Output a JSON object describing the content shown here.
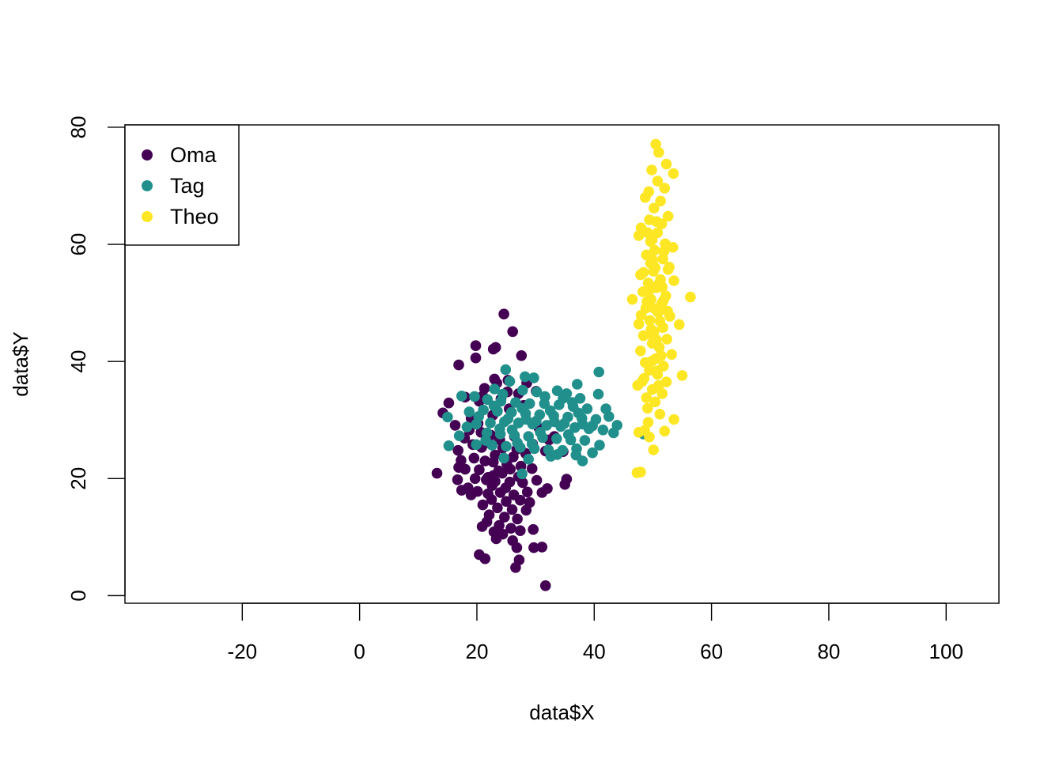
{
  "chart_data": {
    "type": "scatter",
    "title": "",
    "xlabel": "data$X",
    "ylabel": "data$Y",
    "xlim": [
      -40,
      109
    ],
    "ylim": [
      -1.3,
      80.4
    ],
    "x_ticks": [
      -20,
      0,
      20,
      40,
      60,
      80,
      100
    ],
    "y_ticks": [
      0,
      20,
      40,
      60,
      80
    ],
    "grid": false,
    "legend_position": "top-left",
    "series": [
      {
        "name": "Oma",
        "color": "#440154",
        "points": [
          [
            24.6,
            48.1
          ],
          [
            26.1,
            45.1
          ],
          [
            19.8,
            42.7
          ],
          [
            23.2,
            42.4
          ],
          [
            22.8,
            42.1
          ],
          [
            27.6,
            41.0
          ],
          [
            19.8,
            40.6
          ],
          [
            16.9,
            39.4
          ],
          [
            23.4,
            36.3
          ],
          [
            25.3,
            36.8
          ],
          [
            21.3,
            35.4
          ],
          [
            25.2,
            34.8
          ],
          [
            18.0,
            33.9
          ],
          [
            20.4,
            33.2
          ],
          [
            15.2,
            32.9
          ],
          [
            14.2,
            31.2
          ],
          [
            19.0,
            30.3
          ],
          [
            16.3,
            29.1
          ],
          [
            18.7,
            28.3
          ],
          [
            20.7,
            27.9
          ],
          [
            22.4,
            27.4
          ],
          [
            17.9,
            26.9
          ],
          [
            21.7,
            26.1
          ],
          [
            19.3,
            25.8
          ],
          [
            24.4,
            25.2
          ],
          [
            26.8,
            25.0
          ],
          [
            29.5,
            25.9
          ],
          [
            31.7,
            24.7
          ],
          [
            32.3,
            26.6
          ],
          [
            34.7,
            24.6
          ],
          [
            16.8,
            24.8
          ],
          [
            19.5,
            23.5
          ],
          [
            17.3,
            23.1
          ],
          [
            21.4,
            23.0
          ],
          [
            22.8,
            22.8
          ],
          [
            25.1,
            22.5
          ],
          [
            27.5,
            22.1
          ],
          [
            29.4,
            21.7
          ],
          [
            23.7,
            21.3
          ],
          [
            20.4,
            21.5
          ],
          [
            18.0,
            21.6
          ],
          [
            16.9,
            21.9
          ],
          [
            13.2,
            20.9
          ],
          [
            19.7,
            20.0
          ],
          [
            21.6,
            19.8
          ],
          [
            23.1,
            19.5
          ],
          [
            25.6,
            19.4
          ],
          [
            27.8,
            19.3
          ],
          [
            30.2,
            19.7
          ],
          [
            16.7,
            19.8
          ],
          [
            18.5,
            18.4
          ],
          [
            20.1,
            17.8
          ],
          [
            21.9,
            17.4
          ],
          [
            24.0,
            17.6
          ],
          [
            26.3,
            17.2
          ],
          [
            28.6,
            17.7
          ],
          [
            31.1,
            17.6
          ],
          [
            32.0,
            18.3
          ],
          [
            35.0,
            19.0
          ],
          [
            35.3,
            19.9
          ],
          [
            17.4,
            18.0
          ],
          [
            19.0,
            17.2
          ],
          [
            22.5,
            16.4
          ],
          [
            25.0,
            16.1
          ],
          [
            27.4,
            16.3
          ],
          [
            29.0,
            15.9
          ],
          [
            21.0,
            15.5
          ],
          [
            23.5,
            15.0
          ],
          [
            26.0,
            14.7
          ],
          [
            28.4,
            14.6
          ],
          [
            22.1,
            13.8
          ],
          [
            24.7,
            13.4
          ],
          [
            26.9,
            13.1
          ],
          [
            21.7,
            12.6
          ],
          [
            23.8,
            12.0
          ],
          [
            25.8,
            11.5
          ],
          [
            27.4,
            11.1
          ],
          [
            29.6,
            11.3
          ],
          [
            22.9,
            10.9
          ],
          [
            20.9,
            11.8
          ],
          [
            24.4,
            10.5
          ],
          [
            23.3,
            9.7
          ],
          [
            26.1,
            9.4
          ],
          [
            29.7,
            8.2
          ],
          [
            31.1,
            8.3
          ],
          [
            26.8,
            8.2
          ],
          [
            20.4,
            7.0
          ],
          [
            21.4,
            6.3
          ],
          [
            27.2,
            6.1
          ],
          [
            26.6,
            4.8
          ],
          [
            31.7,
            1.7
          ],
          [
            22.8,
            20.5
          ],
          [
            24.3,
            20.9
          ],
          [
            26.2,
            23.7
          ],
          [
            28.3,
            24.3
          ],
          [
            23.1,
            24.0
          ],
          [
            21.9,
            20.2
          ],
          [
            25.7,
            21.6
          ],
          [
            24.9,
            18.4
          ],
          [
            22.6,
            18.8
          ],
          [
            27.1,
            20.3
          ],
          [
            20.8,
            25.3
          ],
          [
            23.9,
            26.6
          ],
          [
            26.4,
            27.2
          ],
          [
            30.6,
            28.6
          ],
          [
            33.2,
            27.2
          ],
          [
            20.2,
            29.4
          ],
          [
            22.7,
            30.8
          ],
          [
            25.5,
            31.9
          ],
          [
            28.0,
            32.5
          ],
          [
            24.1,
            33.6
          ],
          [
            27.1,
            34.5
          ],
          [
            30.1,
            34.9
          ],
          [
            21.0,
            34.1
          ],
          [
            23.0,
            37.0
          ],
          [
            28.5,
            36.3
          ]
        ]
      },
      {
        "name": "Tag",
        "color": "#21908C",
        "points": [
          [
            24.9,
            38.6
          ],
          [
            28.2,
            37.4
          ],
          [
            29.7,
            37.2
          ],
          [
            37.1,
            36.1
          ],
          [
            40.8,
            38.2
          ],
          [
            25.6,
            36.6
          ],
          [
            23.0,
            35.3
          ],
          [
            27.8,
            35.1
          ],
          [
            30.2,
            34.8
          ],
          [
            33.7,
            35.0
          ],
          [
            35.3,
            34.5
          ],
          [
            37.6,
            33.7
          ],
          [
            40.7,
            34.4
          ],
          [
            17.4,
            34.1
          ],
          [
            19.6,
            34.0
          ],
          [
            21.8,
            33.5
          ],
          [
            24.1,
            33.2
          ],
          [
            26.6,
            33.0
          ],
          [
            29.0,
            32.8
          ],
          [
            31.5,
            32.8
          ],
          [
            34.0,
            32.6
          ],
          [
            36.4,
            32.3
          ],
          [
            38.8,
            31.9
          ],
          [
            15.0,
            30.5
          ],
          [
            18.7,
            31.4
          ],
          [
            21.1,
            31.7
          ],
          [
            23.5,
            31.5
          ],
          [
            25.9,
            31.3
          ],
          [
            28.3,
            31.1
          ],
          [
            30.7,
            30.9
          ],
          [
            33.1,
            30.7
          ],
          [
            35.5,
            30.5
          ],
          [
            37.9,
            30.3
          ],
          [
            40.3,
            30.1
          ],
          [
            42.5,
            30.6
          ],
          [
            43.9,
            29.1
          ],
          [
            19.9,
            29.3
          ],
          [
            22.3,
            29.5
          ],
          [
            24.7,
            29.7
          ],
          [
            27.1,
            29.5
          ],
          [
            29.5,
            29.3
          ],
          [
            31.9,
            29.1
          ],
          [
            34.3,
            28.9
          ],
          [
            36.7,
            28.7
          ],
          [
            39.1,
            28.5
          ],
          [
            41.5,
            28.3
          ],
          [
            17.0,
            27.3
          ],
          [
            21.7,
            27.8
          ],
          [
            24.0,
            27.6
          ],
          [
            26.4,
            27.4
          ],
          [
            28.8,
            27.2
          ],
          [
            31.2,
            27.0
          ],
          [
            33.6,
            26.8
          ],
          [
            36.0,
            26.6
          ],
          [
            38.4,
            26.5
          ],
          [
            43.3,
            27.8
          ],
          [
            19.9,
            25.8
          ],
          [
            22.6,
            25.7
          ],
          [
            25.0,
            25.5
          ],
          [
            27.4,
            25.3
          ],
          [
            29.8,
            25.1
          ],
          [
            32.2,
            24.9
          ],
          [
            34.6,
            24.8
          ],
          [
            37.0,
            25.1
          ],
          [
            40.9,
            25.7
          ],
          [
            15.2,
            25.6
          ],
          [
            24.6,
            23.5
          ],
          [
            28.8,
            23.3
          ],
          [
            33.7,
            24.1
          ],
          [
            36.9,
            24.0
          ],
          [
            38.0,
            23.0
          ],
          [
            39.7,
            24.4
          ],
          [
            27.7,
            20.8
          ],
          [
            48.4,
            27.6
          ],
          [
            20.3,
            30.6
          ],
          [
            22.9,
            32.4
          ],
          [
            25.3,
            30.2
          ],
          [
            27.7,
            32.0
          ],
          [
            30.1,
            29.8
          ],
          [
            32.5,
            31.6
          ],
          [
            34.9,
            29.4
          ],
          [
            37.3,
            31.2
          ],
          [
            39.7,
            29.0
          ],
          [
            26.0,
            28.3
          ],
          [
            28.4,
            30.1
          ],
          [
            30.8,
            27.9
          ],
          [
            33.2,
            29.7
          ],
          [
            35.6,
            27.5
          ],
          [
            38.0,
            29.3
          ],
          [
            21.5,
            26.5
          ],
          [
            23.9,
            28.5
          ],
          [
            31.6,
            34.0
          ],
          [
            34.7,
            33.7
          ],
          [
            29.4,
            25.9
          ],
          [
            32.6,
            23.8
          ],
          [
            18.3,
            28.8
          ],
          [
            42.0,
            31.9
          ],
          [
            36.3,
            33.0
          ],
          [
            24.4,
            34.4
          ],
          [
            26.9,
            26.1
          ]
        ]
      },
      {
        "name": "Theo",
        "color": "#FDE725",
        "points": [
          [
            50.5,
            77.1
          ],
          [
            51.0,
            75.7
          ],
          [
            52.3,
            73.7
          ],
          [
            49.8,
            72.7
          ],
          [
            53.5,
            72.1
          ],
          [
            50.8,
            70.8
          ],
          [
            52.0,
            69.6
          ],
          [
            49.3,
            69.0
          ],
          [
            48.7,
            68.0
          ],
          [
            51.3,
            67.4
          ],
          [
            50.2,
            66.2
          ],
          [
            52.6,
            64.8
          ],
          [
            49.4,
            64.2
          ],
          [
            51.5,
            63.5
          ],
          [
            48.0,
            62.8
          ],
          [
            50.8,
            62.0
          ],
          [
            47.6,
            61.5
          ],
          [
            49.9,
            60.8
          ],
          [
            52.1,
            60.1
          ],
          [
            53.4,
            59.5
          ],
          [
            50.3,
            59.0
          ],
          [
            48.9,
            58.2
          ],
          [
            51.7,
            57.5
          ],
          [
            49.6,
            56.8
          ],
          [
            52.8,
            56.1
          ],
          [
            50.1,
            55.4
          ],
          [
            47.9,
            54.8
          ],
          [
            51.3,
            54.0
          ],
          [
            49.2,
            53.4
          ],
          [
            53.6,
            53.8
          ],
          [
            50.6,
            52.6
          ],
          [
            48.3,
            51.9
          ],
          [
            52.2,
            51.2
          ],
          [
            49.7,
            50.6
          ],
          [
            51.5,
            49.9
          ],
          [
            46.5,
            50.6
          ],
          [
            56.4,
            51.0
          ],
          [
            48.8,
            49.1
          ],
          [
            50.9,
            48.4
          ],
          [
            52.9,
            47.7
          ],
          [
            49.5,
            47.0
          ],
          [
            47.6,
            46.4
          ],
          [
            51.7,
            45.8
          ],
          [
            54.5,
            46.3
          ],
          [
            50.2,
            45.1
          ],
          [
            48.4,
            44.4
          ],
          [
            52.4,
            43.8
          ],
          [
            49.9,
            43.1
          ],
          [
            51.1,
            42.4
          ],
          [
            47.9,
            41.8
          ],
          [
            53.2,
            41.2
          ],
          [
            50.5,
            40.5
          ],
          [
            48.7,
            39.8
          ],
          [
            51.8,
            39.2
          ],
          [
            49.4,
            38.5
          ],
          [
            55.0,
            37.6
          ],
          [
            50.8,
            37.8
          ],
          [
            48.5,
            37.1
          ],
          [
            52.3,
            36.5
          ],
          [
            47.4,
            35.9
          ],
          [
            49.9,
            35.2
          ],
          [
            51.6,
            34.5
          ],
          [
            48.9,
            33.8
          ],
          [
            50.4,
            33.1
          ],
          [
            49.1,
            32.0
          ],
          [
            51.2,
            31.0
          ],
          [
            53.6,
            30.1
          ],
          [
            49.2,
            29.6
          ],
          [
            48.6,
            28.2
          ],
          [
            52.0,
            28.1
          ],
          [
            47.6,
            27.9
          ],
          [
            49.4,
            27.1
          ],
          [
            50.1,
            24.9
          ],
          [
            47.3,
            21.0
          ],
          [
            47.9,
            21.1
          ],
          [
            50.6,
            63.9
          ],
          [
            49.1,
            62.0
          ],
          [
            51.9,
            58.8
          ],
          [
            50.0,
            57.3
          ],
          [
            52.6,
            55.7
          ],
          [
            48.4,
            55.2
          ],
          [
            50.9,
            53.1
          ],
          [
            49.3,
            52.0
          ],
          [
            51.8,
            50.4
          ],
          [
            50.3,
            49.0
          ],
          [
            48.0,
            47.9
          ],
          [
            52.5,
            48.6
          ],
          [
            51.2,
            46.9
          ],
          [
            49.7,
            45.5
          ],
          [
            50.6,
            43.7
          ],
          [
            51.4,
            41.0
          ],
          [
            49.9,
            40.1
          ],
          [
            50.7,
            38.4
          ],
          [
            48.2,
            36.6
          ],
          [
            51.0,
            35.9
          ],
          [
            50.1,
            44.2
          ],
          [
            49.0,
            50.2
          ],
          [
            51.6,
            52.7
          ],
          [
            50.4,
            56.0
          ],
          [
            49.6,
            60.5
          ]
        ]
      }
    ]
  }
}
